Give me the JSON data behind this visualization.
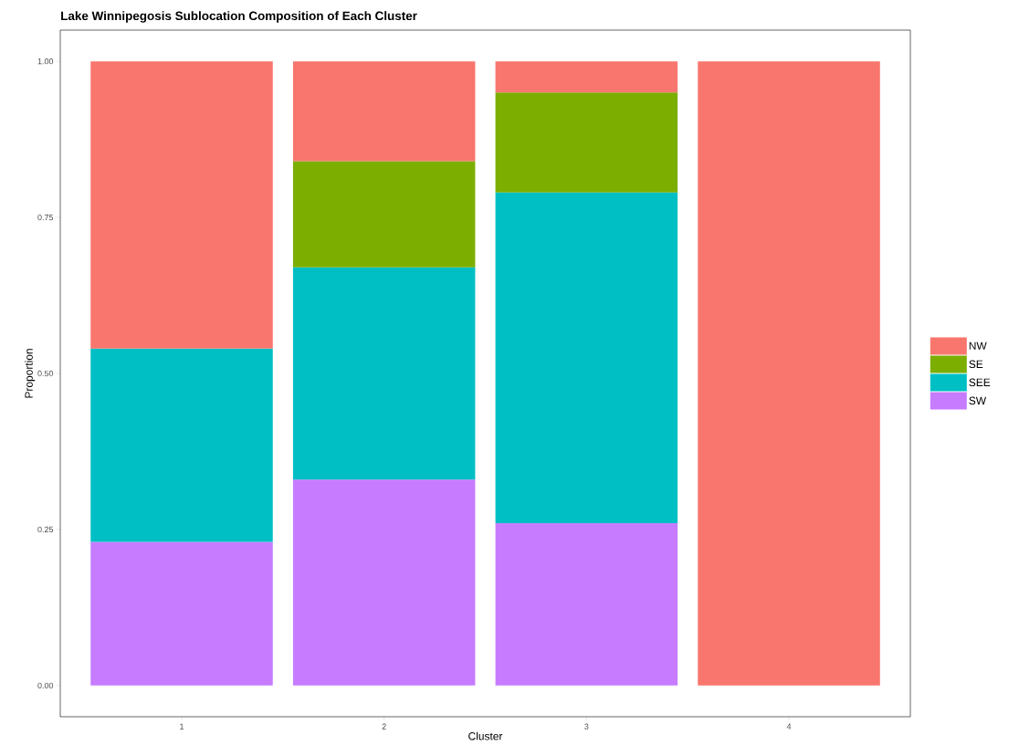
{
  "chart_data": {
    "type": "bar",
    "title": "Lake Winnipegosis Sublocation Composition of Each Cluster",
    "xlabel": "Cluster",
    "ylabel": "Proportion",
    "categories": [
      "1",
      "2",
      "3",
      "4"
    ],
    "stacked": true,
    "legend": "right",
    "grid": false,
    "ylim": [
      -0.05,
      1.05
    ],
    "yticks": [
      {
        "value": 0,
        "label": "0.00"
      },
      {
        "value": 0.25,
        "label": "0.25"
      },
      {
        "value": 0.5,
        "label": "0.50"
      },
      {
        "value": 0.75,
        "label": "0.75"
      },
      {
        "value": 1,
        "label": "1.00"
      }
    ],
    "series": [
      {
        "name": "SW",
        "color": "#c77cff",
        "values": [
          0.23,
          0.33,
          0.26,
          null
        ]
      },
      {
        "name": "SEE",
        "color": "#00bfc4",
        "values": [
          0.31,
          0.34,
          0.53,
          null
        ]
      },
      {
        "name": "SE",
        "color": "#7cae00",
        "values": [
          null,
          0.17,
          0.16,
          null
        ]
      },
      {
        "name": "NW",
        "color": "#f8766d",
        "values": [
          0.46,
          0.16,
          0.05,
          1.0
        ]
      }
    ]
  }
}
